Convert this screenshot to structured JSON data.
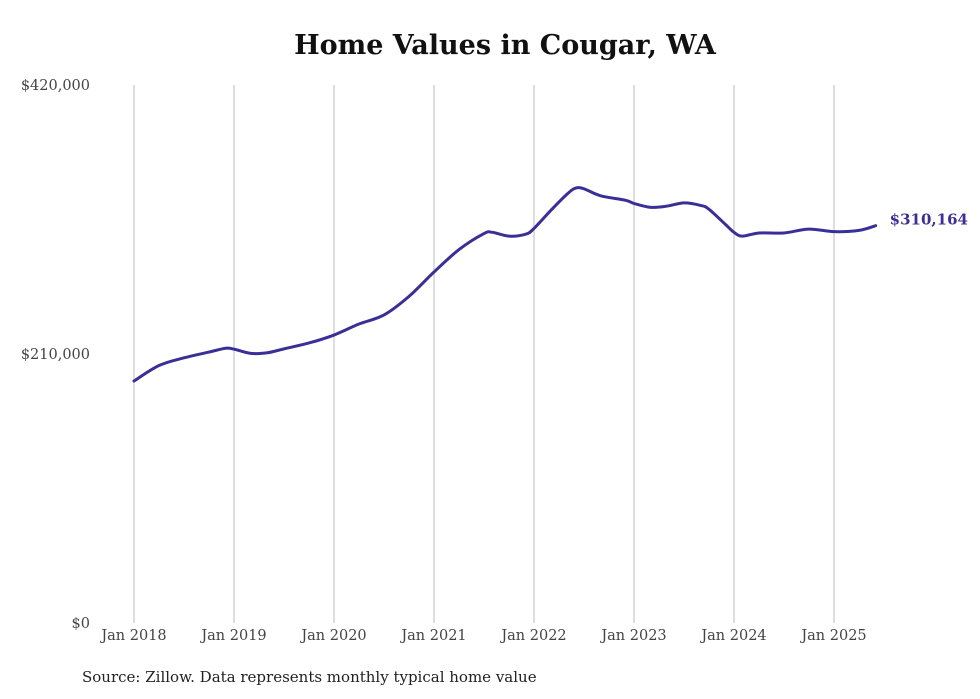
{
  "chart_data": {
    "type": "line",
    "title": "Home Values in Cougar, WA",
    "source": "Source: Zillow. Data represents monthly typical home value",
    "xlabel": "",
    "ylabel": "",
    "ylim": [
      0,
      420000
    ],
    "y_ticks": [
      0,
      210000,
      420000
    ],
    "y_tick_labels": [
      "$0",
      "$210,000",
      "$420,000"
    ],
    "x_ticks": [
      "2018-01",
      "2019-01",
      "2020-01",
      "2021-01",
      "2022-01",
      "2023-01",
      "2024-01",
      "2025-01"
    ],
    "x_tick_labels": [
      "Jan 2018",
      "Jan 2019",
      "Jan 2020",
      "Jan 2021",
      "Jan 2022",
      "Jan 2023",
      "Jan 2024",
      "Jan 2025"
    ],
    "grid": "vertical",
    "line_color": "#3a2f96",
    "end_label": "$310,164",
    "series": [
      {
        "name": "Typical home value",
        "x": [
          "2018-01",
          "2018-04",
          "2018-07",
          "2018-10",
          "2018-12",
          "2019-01",
          "2019-03",
          "2019-05",
          "2019-07",
          "2019-10",
          "2020-01",
          "2020-04",
          "2020-07",
          "2020-10",
          "2021-01",
          "2021-04",
          "2021-07",
          "2021-08",
          "2021-10",
          "2021-12",
          "2022-01",
          "2022-03",
          "2022-05",
          "2022-06",
          "2022-07",
          "2022-09",
          "2022-12",
          "2023-01",
          "2023-03",
          "2023-05",
          "2023-07",
          "2023-09",
          "2023-10",
          "2023-12",
          "2024-01",
          "2024-02",
          "2024-04",
          "2024-07",
          "2024-10",
          "2025-01",
          "2025-04",
          "2025-06"
        ],
        "values": [
          188900,
          201000,
          207000,
          211500,
          214500,
          213800,
          210500,
          211000,
          214000,
          218600,
          224800,
          233400,
          240500,
          255000,
          274000,
          291500,
          304000,
          305000,
          302000,
          303500,
          308000,
          322000,
          335000,
          339500,
          339000,
          333500,
          330000,
          327500,
          324500,
          325500,
          328000,
          326000,
          323000,
          311000,
          305000,
          302000,
          304500,
          304500,
          307500,
          305500,
          306500,
          310164
        ]
      }
    ]
  }
}
